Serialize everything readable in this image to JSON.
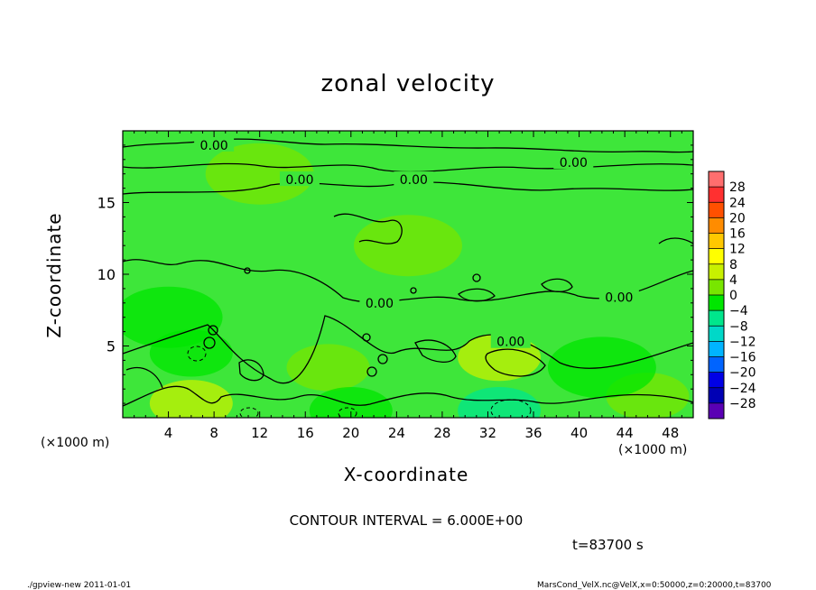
{
  "chart_data": {
    "type": "heatmap",
    "title": "zonal velocity",
    "xlabel": "X-coordinate",
    "ylabel": "Z-coordinate",
    "x_unit_label": "(×1000 m)",
    "y_unit_label": "(×1000 m)",
    "xlim": [
      0,
      50
    ],
    "ylim": [
      0,
      20
    ],
    "x_ticks": [
      4,
      8,
      12,
      16,
      20,
      24,
      28,
      32,
      36,
      40,
      44,
      48
    ],
    "y_ticks": [
      5,
      10,
      15
    ],
    "contour_label": "0.00",
    "contour_interval_text": "CONTOUR INTERVAL = 6.000E+00",
    "time_text": "t=83700 s",
    "colorbar": {
      "levels": [
        28,
        24,
        20,
        16,
        12,
        8,
        4,
        0,
        -4,
        -8,
        -12,
        -16,
        -20,
        -24,
        -28
      ],
      "colors": [
        "#ff6e6e",
        "#ff3030",
        "#ff5000",
        "#ff8c00",
        "#ffc800",
        "#ffff00",
        "#c8f000",
        "#78e600",
        "#00e600",
        "#00e68c",
        "#00d8c8",
        "#00b4ff",
        "#0064ff",
        "#0000e6",
        "#0000b4",
        "#5a00b4"
      ]
    },
    "field_centers": [
      {
        "x": 6,
        "z": 1.0,
        "u": 5
      },
      {
        "x": 18,
        "z": 3.5,
        "u": 4
      },
      {
        "x": 33,
        "z": 4.2,
        "u": 5
      },
      {
        "x": 46,
        "z": 1.5,
        "u": 3
      },
      {
        "x": 6,
        "z": 4.5,
        "u": -3
      },
      {
        "x": 20,
        "z": 0.5,
        "u": -3
      },
      {
        "x": 33,
        "z": 0.5,
        "u": -4
      },
      {
        "x": 42,
        "z": 3.5,
        "u": -2
      },
      {
        "x": 4,
        "z": 7.0,
        "u": -2
      },
      {
        "x": 25,
        "z": 12.0,
        "u": 1.5
      },
      {
        "x": 12,
        "z": 17.0,
        "u": 1
      }
    ]
  },
  "footer": {
    "left": "./gpview-new  2011-01-01",
    "right": "MarsCond_VelX.nc@VelX,x=0:50000,z=0:20000,t=83700"
  }
}
